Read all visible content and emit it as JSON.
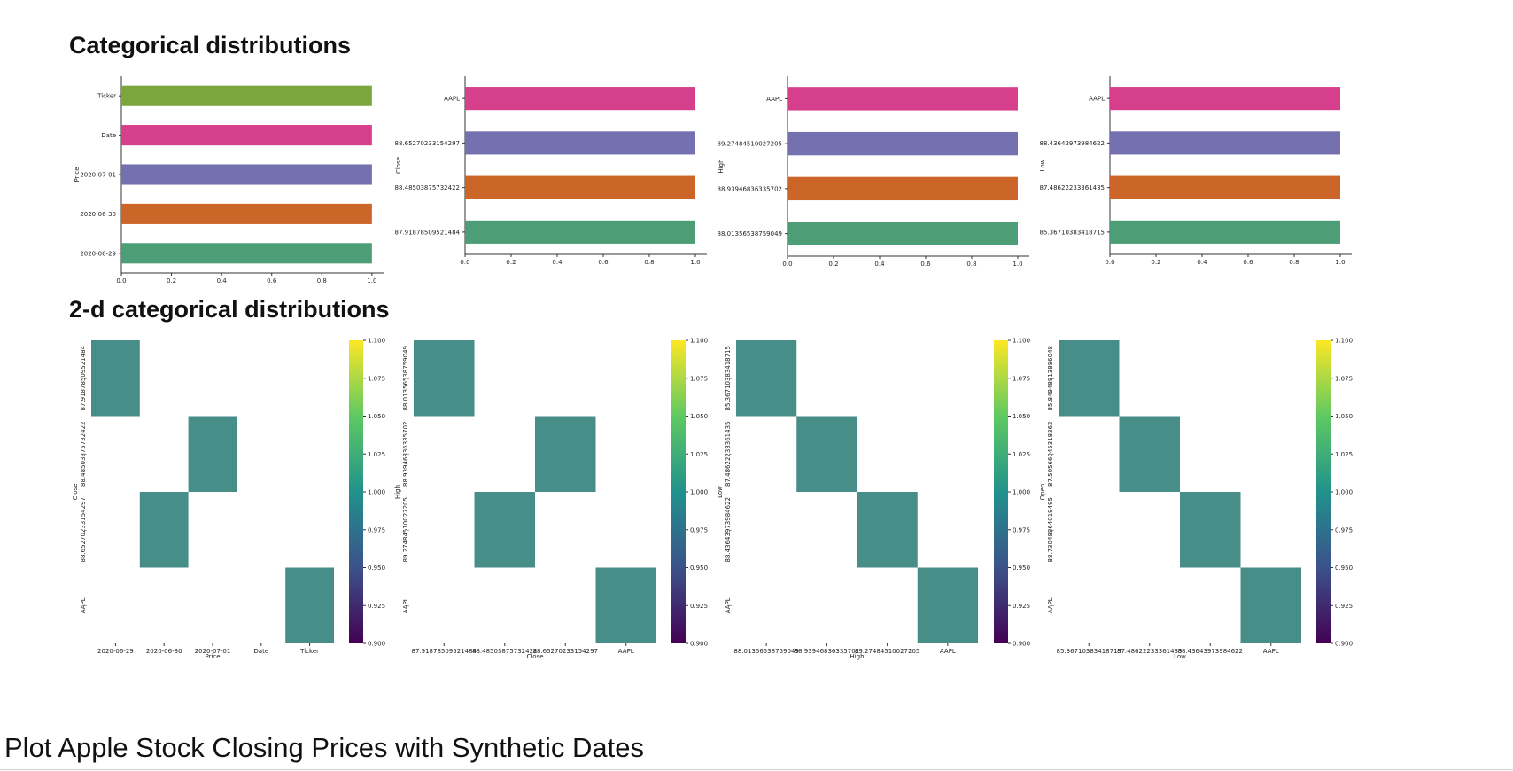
{
  "sections": {
    "categorical_title": "Categorical distributions",
    "two_d_title": "2-d categorical distributions",
    "notebook_heading": "Plot Apple Stock Closing Prices with Synthetic Dates"
  },
  "colors": {
    "green_light": "#7aa63c",
    "pink": "#d63f8b",
    "purple": "#7570b0",
    "orange": "#cc6628",
    "green": "#4d9e76",
    "heat_cell": "#478e89",
    "viridis": [
      "#440154",
      "#3b528b",
      "#21918c",
      "#5ec962",
      "#fde725"
    ]
  },
  "chart_data": [
    {
      "type": "bar",
      "orientation": "horizontal",
      "ylabel": "Price",
      "categories": [
        "Ticker",
        "Date",
        "2020-07-01",
        "2020-06-30",
        "2020-06-29"
      ],
      "values": [
        1.0,
        1.0,
        1.0,
        1.0,
        1.0
      ],
      "bar_colors": [
        "#7aa63c",
        "#d63f8b",
        "#7570b0",
        "#cc6628",
        "#4d9e76"
      ],
      "xlim": [
        0,
        1.05
      ],
      "xticks": [
        "0.0",
        "0.2",
        "0.4",
        "0.6",
        "0.8",
        "1.0"
      ]
    },
    {
      "type": "bar",
      "orientation": "horizontal",
      "ylabel": "Close",
      "categories": [
        "AAPL",
        "88.65270233154297",
        "88.48503875732422",
        "87.91878509521484"
      ],
      "values": [
        1.0,
        1.0,
        1.0,
        1.0
      ],
      "bar_colors": [
        "#d63f8b",
        "#7570b0",
        "#cc6628",
        "#4d9e76"
      ],
      "xlim": [
        0,
        1.05
      ],
      "xticks": [
        "0.0",
        "0.2",
        "0.4",
        "0.6",
        "0.8",
        "1.0"
      ]
    },
    {
      "type": "bar",
      "orientation": "horizontal",
      "ylabel": "High",
      "categories": [
        "AAPL",
        "89.27484510027205",
        "88.93946836335702",
        "88.01356538759049"
      ],
      "values": [
        1.0,
        1.0,
        1.0,
        1.0
      ],
      "bar_colors": [
        "#d63f8b",
        "#7570b0",
        "#cc6628",
        "#4d9e76"
      ],
      "xlim": [
        0,
        1.05
      ],
      "xticks": [
        "0.0",
        "0.2",
        "0.4",
        "0.6",
        "0.8",
        "1.0"
      ]
    },
    {
      "type": "bar",
      "orientation": "horizontal",
      "ylabel": "Low",
      "categories": [
        "AAPL",
        "88.43643973984622",
        "87.48622233361435",
        "85.36710383418715"
      ],
      "values": [
        1.0,
        1.0,
        1.0,
        1.0
      ],
      "bar_colors": [
        "#d63f8b",
        "#7570b0",
        "#cc6628",
        "#4d9e76"
      ],
      "xlim": [
        0,
        1.05
      ],
      "xticks": [
        "0.0",
        "0.2",
        "0.4",
        "0.6",
        "0.8",
        "1.0"
      ]
    },
    {
      "type": "heatmap",
      "xlabel": "Price",
      "ylabel": "Close",
      "x_categories": [
        "2020-06-29",
        "2020-06-30",
        "2020-07-01",
        "Date",
        "Ticker"
      ],
      "y_categories": [
        "87.91878509521484",
        "88.48503875732422",
        "88.65270233154297",
        "AAPL"
      ],
      "y_tick_labels_shown": [
        "87.91878509521484",
        "-",
        "88.48503875732422",
        "-",
        "88.65270233154297",
        "-",
        "AAPL",
        "-"
      ],
      "cells": [
        [
          0,
          0,
          1
        ],
        [
          2,
          1,
          1
        ],
        [
          1,
          2,
          1
        ],
        [
          4,
          3,
          1
        ]
      ],
      "colorbar": {
        "min": 0.9,
        "max": 1.1,
        "ticks": [
          "1.100",
          "1.075",
          "1.050",
          "1.025",
          "1.000",
          "0.975",
          "0.950",
          "0.925",
          "0.900"
        ]
      }
    },
    {
      "type": "heatmap",
      "xlabel": "Close",
      "ylabel": "High",
      "x_categories": [
        "87.91878509521484",
        "88.48503875732422",
        "88.65270233154297",
        "AAPL"
      ],
      "y_categories": [
        "88.01356538759049",
        "88.93946836335702",
        "89.27484510027205",
        "AAPL"
      ],
      "y_tick_labels_shown": [
        "88.01356538759049",
        "-",
        "88.93946836335702",
        "-",
        "89.27484510027205",
        "-",
        "AAPL",
        "-"
      ],
      "cells": [
        [
          0,
          0,
          1
        ],
        [
          2,
          1,
          1
        ],
        [
          1,
          2,
          1
        ],
        [
          3,
          3,
          1
        ]
      ],
      "colorbar": {
        "min": 0.9,
        "max": 1.1,
        "ticks": [
          "1.100",
          "1.075",
          "1.050",
          "1.025",
          "1.000",
          "0.975",
          "0.950",
          "0.925",
          "0.900"
        ]
      }
    },
    {
      "type": "heatmap",
      "xlabel": "High",
      "ylabel": "Low",
      "x_categories": [
        "88.01356538759049",
        "88.93946836335702",
        "89.27484510027205",
        "AAPL"
      ],
      "y_categories": [
        "85.36710383418715",
        "87.48622233361435",
        "88.43643973984622",
        "AAPL"
      ],
      "y_tick_labels_shown": [
        "85.36710383418715",
        "-",
        "87.48622233361435",
        "-",
        "88.43643973984622",
        "-",
        "AAPL",
        "-"
      ],
      "cells": [
        [
          0,
          0,
          1
        ],
        [
          1,
          1,
          1
        ],
        [
          2,
          2,
          1
        ],
        [
          3,
          3,
          1
        ]
      ],
      "colorbar": {
        "min": 0.9,
        "max": 1.1,
        "ticks": [
          "1.100",
          "1.075",
          "1.050",
          "1.025",
          "1.000",
          "0.975",
          "0.950",
          "0.925",
          "0.900"
        ]
      }
    },
    {
      "type": "heatmap",
      "xlabel": "Low",
      "ylabel": "Open",
      "x_categories": [
        "85.36710383418715",
        "87.48622233361435",
        "88.43643973984622",
        "AAPL"
      ],
      "y_categories": [
        "85.84848813886048",
        "87.50566045318362",
        "88.73048864019495",
        "AAPL"
      ],
      "y_tick_labels_shown": [
        "85.84848813886048",
        "-",
        "87.50566045318362",
        "-",
        "88.73048864019495",
        "-",
        "AAPL",
        "-"
      ],
      "cells": [
        [
          0,
          0,
          1
        ],
        [
          1,
          1,
          1
        ],
        [
          2,
          2,
          1
        ],
        [
          3,
          3,
          1
        ]
      ],
      "colorbar": {
        "min": 0.9,
        "max": 1.1,
        "ticks": [
          "1.100",
          "1.075",
          "1.050",
          "1.025",
          "1.000",
          "0.975",
          "0.950",
          "0.925",
          "0.900"
        ]
      }
    }
  ]
}
